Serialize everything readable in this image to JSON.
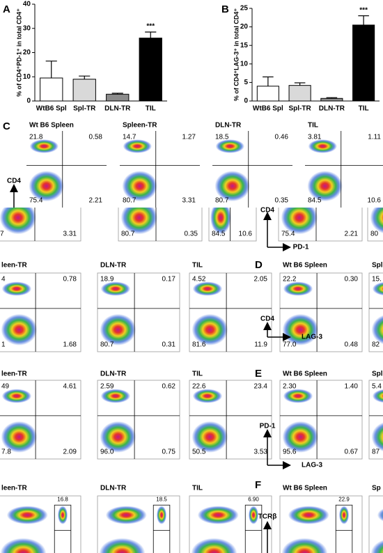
{
  "chart_data": [
    {
      "type": "bar",
      "panel": "A",
      "y_label": "% of CD4⁺PD-1⁺ in total CD4⁺",
      "categories": [
        "WtB6 Spl",
        "Spl-TR",
        "DLN-TR",
        "TIL"
      ],
      "values": [
        9.5,
        9,
        2.8,
        26
      ],
      "errors": [
        7,
        1.3,
        0.4,
        2.5
      ],
      "colors": [
        "#ffffff",
        "#d9d9d9",
        "#8c8c8c",
        "#000000"
      ],
      "ylim": [
        0,
        40
      ],
      "yticks": [
        0,
        10,
        20,
        30,
        40
      ],
      "annotation": "***"
    },
    {
      "type": "bar",
      "panel": "B",
      "y_label": "% of CD4⁺LAG-3⁺ in total CD4⁺",
      "categories": [
        "WtB6 Spl",
        "Spl-TR",
        "DLN-TR",
        "TIL"
      ],
      "values": [
        4,
        4.2,
        0.7,
        20.5
      ],
      "errors": [
        2.5,
        0.7,
        0.2,
        2.5
      ],
      "colors": [
        "#ffffff",
        "#d9d9d9",
        "#8c8c8c",
        "#000000"
      ],
      "ylim": [
        0,
        25
      ],
      "yticks": [
        0,
        5,
        10,
        15,
        20,
        25
      ],
      "annotation": "***"
    }
  ],
  "flow_rows": [
    {
      "panel": "C",
      "y_axis": "CD4",
      "plots": [
        {
          "title": "Wt B6 Spleen",
          "tl": "21.8",
          "tr": "0.58",
          "bl": "75.4",
          "br": "2.21"
        },
        {
          "title": "Spleen-TR",
          "tl": "14.7",
          "tr": "1.27",
          "bl": "80.7",
          "br": "3.31"
        },
        {
          "title": "DLN-TR",
          "tl": "18.5",
          "tr": "0.46",
          "bl": "80.7",
          "br": "0.35"
        },
        {
          "title": "TIL",
          "tl": "3.81",
          "tr": "1.11",
          "bl": "84.5",
          "br": "10.6"
        }
      ]
    },
    {
      "y_axis": "CD4",
      "x_axis": "PD-1",
      "plots": [
        {
          "bl": "7",
          "br": "3.31"
        },
        {
          "bl": "80.7",
          "br": "0.35"
        },
        {
          "bl": "84.5",
          "br": "10.6"
        },
        {
          "bl": "75.4",
          "br": "2.21"
        },
        {
          "bl": "80"
        }
      ]
    },
    {
      "panel": "D",
      "y_axis": "CD4",
      "x_axis": "LAG-3",
      "plots": [
        {
          "title": "leen-TR",
          "tl": "4",
          "tr": "0.78",
          "bl": "1",
          "br": "1.68"
        },
        {
          "title": "DLN-TR",
          "tl": "18.9",
          "tr": "0.17",
          "bl": "80.7",
          "br": "0.31"
        },
        {
          "title": "TIL",
          "tl": "4.52",
          "tr": "2.05",
          "bl": "81.6",
          "br": "11.9"
        },
        {
          "title": "Wt B6 Spleen",
          "tl": "22.2",
          "tr": "0.30",
          "bl": "77.0",
          "br": "0.48"
        },
        {
          "title": "Spl",
          "tl": "15.",
          "bl": "82"
        }
      ]
    },
    {
      "panel": "E",
      "y_axis": "PD-1",
      "x_axis": "LAG-3",
      "plots": [
        {
          "title": "leen-TR",
          "tl": "49",
          "tr": "4.61",
          "bl": "7.8",
          "br": "2.09"
        },
        {
          "title": "DLN-TR",
          "tl": "2.59",
          "tr": "0.62",
          "bl": "96.0",
          "br": "0.75"
        },
        {
          "title": "TIL",
          "tl": "22.6",
          "tr": "23.4",
          "bl": "50.5",
          "br": "3.53"
        },
        {
          "title": "Wt B6 Spleen",
          "tl": "2.30",
          "tr": "1.40",
          "bl": "95.6",
          "br": "0.67"
        },
        {
          "title": "Spl",
          "tl": "5.4",
          "bl": "87"
        }
      ]
    },
    {
      "panel": "F",
      "y_axis": "TCRβ",
      "plots": [
        {
          "title": "leen-TR",
          "gate": "16.8"
        },
        {
          "title": "DLN-TR",
          "gate": "18.5"
        },
        {
          "title": "TIL",
          "gate": "6.90"
        },
        {
          "title": "Wt B6 Spleen",
          "gate": "22.9"
        },
        {
          "title": "Sp"
        }
      ]
    }
  ]
}
